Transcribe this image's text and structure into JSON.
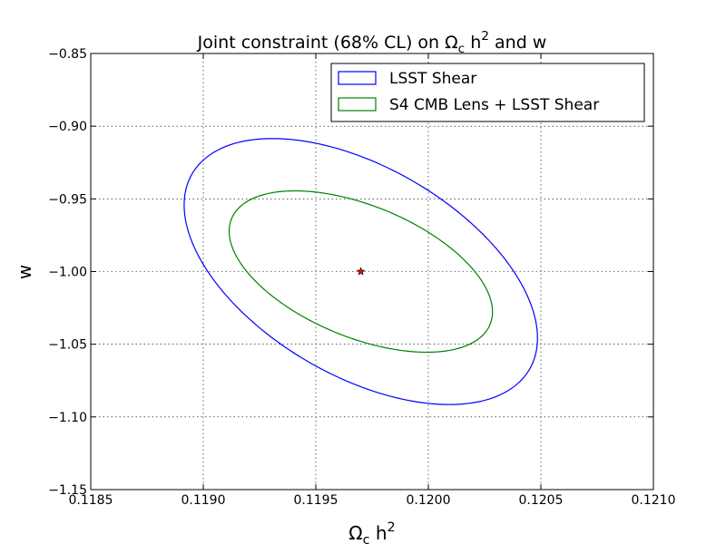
{
  "chart_data": {
    "type": "contour",
    "title": "Joint constraint (68% CL) on Ω_c h^2  and w",
    "xlabel": "Ω_c h^2",
    "ylabel": "w",
    "xlim": [
      0.1185,
      0.121
    ],
    "ylim": [
      -1.15,
      -0.85
    ],
    "xticks": [
      0.1185,
      0.119,
      0.1195,
      0.12,
      0.1205,
      0.121
    ],
    "xtick_labels": [
      "0.1185",
      "0.1190",
      "0.1195",
      "0.1200",
      "0.1205",
      "0.1210"
    ],
    "yticks": [
      -1.15,
      -1.1,
      -1.05,
      -1.0,
      -0.95,
      -0.9,
      -0.85
    ],
    "ytick_labels": [
      "−1.15",
      "−1.10",
      "−1.05",
      "−1.00",
      "−0.95",
      "−0.90",
      "−0.85"
    ],
    "grid": true,
    "legend_position": "top-right",
    "fiducial": {
      "x": 0.1197,
      "y": -1.0,
      "marker": "star",
      "color": "#ff0000"
    },
    "series": [
      {
        "name": "LSST Shear",
        "color": "#0000ff",
        "ellipse": {
          "center": [
            0.1197,
            -1.0
          ],
          "x_extent": [
            0.11892,
            0.12049
          ],
          "y_extent": [
            -1.0915,
            -0.9085
          ]
        }
      },
      {
        "name": "S4 CMB Lens + LSST Shear",
        "color": "#008000",
        "ellipse": {
          "center": [
            0.1197,
            -1.0
          ],
          "x_extent": [
            0.11912,
            0.12029
          ],
          "y_extent": [
            -1.0555,
            -0.9445
          ]
        }
      }
    ]
  }
}
